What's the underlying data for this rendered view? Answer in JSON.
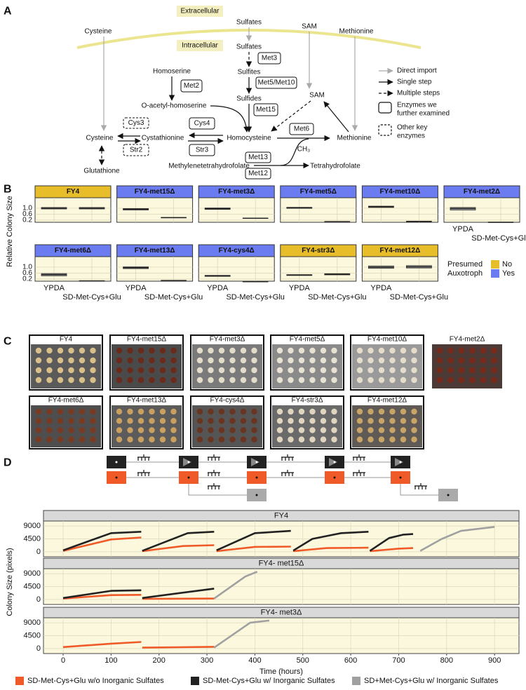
{
  "panel_labels": [
    "A",
    "B",
    "C",
    "D"
  ],
  "pathway": {
    "compartments": [
      "Extracellular",
      "Intracellular"
    ],
    "metabolites": [
      "Cysteine",
      "Sulfates",
      "SAM",
      "Methionine",
      "Sulfates",
      "Sulfites",
      "Homoserine",
      "Sulfides",
      "O-acetyl-homoserine",
      "SAM",
      "Cysteine",
      "Cystathionine",
      "Homocysteine",
      "Methionine",
      "Glutathione",
      "Methylenetetrahydrofolate",
      "Tetrahydrofolate"
    ],
    "cofactor": "CH₃",
    "enzymes": [
      {
        "label": "Met3",
        "border": "solid"
      },
      {
        "label": "Met5/Met10",
        "border": "solid"
      },
      {
        "label": "Met2",
        "border": "solid"
      },
      {
        "label": "Met15",
        "border": "solid"
      },
      {
        "label": "Cys3",
        "border": "dashed"
      },
      {
        "label": "Cys4",
        "border": "solid"
      },
      {
        "label": "Met6",
        "border": "solid"
      },
      {
        "label": "Str2",
        "border": "dashed"
      },
      {
        "label": "Str3",
        "border": "solid"
      },
      {
        "label": "Met13",
        "border": "solid"
      },
      {
        "label": "Met12",
        "border": "solid",
        "color": "#8a8a8a"
      }
    ],
    "legend": [
      [
        "Direct import"
      ],
      [
        "Single step"
      ],
      [
        "Multiple steps"
      ],
      [
        "Enzymes we",
        "further examined"
      ],
      [
        "Other key",
        "enzymes"
      ]
    ]
  },
  "chart_data": [
    {
      "type": "box",
      "ylabel": "Relative Colony Size",
      "categories": [
        "YPDA",
        "SD-Met-Cys+Glu"
      ],
      "ylim": [
        0.06,
        1.7
      ],
      "yticks": [
        0.2,
        0.6,
        {
          "value": 1,
          "label": "1.0"
        }
      ],
      "box_color": "#a9a9a9",
      "legend": {
        "title": [
          "Presumed",
          "Auxotroph"
        ],
        "entries": [
          {
            "label": "No",
            "color": "#e8bd2a"
          },
          {
            "label": "Yes",
            "color": "#6b7cf0"
          }
        ]
      },
      "facets": [
        {
          "title": "FY4",
          "header_color": "#e8bd2a",
          "q1": [
            0.95,
            0.95
          ],
          "median": [
            1.0,
            1.0
          ],
          "q3": [
            1.05,
            1.05
          ]
        },
        {
          "title": "FY4-met15Δ",
          "header_color": "#6b7cf0",
          "q1": [
            0.88,
            0.36
          ],
          "median": [
            0.93,
            0.37
          ],
          "q3": [
            0.98,
            0.38
          ]
        },
        {
          "title": "FY4-met3Δ",
          "header_color": "#6b7cf0",
          "q1": [
            0.92,
            0.32
          ],
          "median": [
            0.97,
            0.33
          ],
          "q3": [
            1.02,
            0.34
          ]
        },
        {
          "title": "FY4-met5Δ",
          "header_color": "#6b7cf0",
          "q1": [
            0.99,
            0.09
          ],
          "median": [
            1.03,
            0.1
          ],
          "q3": [
            1.06,
            0.11
          ]
        },
        {
          "title": "FY4-met10Δ",
          "header_color": "#6b7cf0",
          "q1": [
            1.05,
            0.11
          ],
          "median": [
            1.1,
            0.12
          ],
          "q3": [
            1.14,
            0.13
          ]
        },
        {
          "title": "FY4-met2Δ",
          "header_color": "#6b7cf0",
          "q1": [
            0.88,
            0.05
          ],
          "median": [
            0.98,
            0.06
          ],
          "q3": [
            1.05,
            0.07
          ]
        },
        {
          "title": "FY4-met6Δ",
          "header_color": "#6b7cf0",
          "q1": [
            0.42,
            0.07
          ],
          "median": [
            0.5,
            0.08
          ],
          "q3": [
            0.57,
            0.09
          ]
        },
        {
          "title": "FY4-met13Δ",
          "header_color": "#6b7cf0",
          "q1": [
            0.9,
            0.09
          ],
          "median": [
            0.96,
            0.1
          ],
          "q3": [
            1.02,
            0.11
          ]
        },
        {
          "title": "FY4-cys4Δ",
          "header_color": "#6b7cf0",
          "q1": [
            0.38,
            0.02
          ],
          "median": [
            0.42,
            0.03
          ],
          "q3": [
            0.45,
            0.04
          ]
        },
        {
          "title": "FY4-str3Δ",
          "header_color": "#e8bd2a",
          "q1": [
            0.44,
            0.48
          ],
          "median": [
            0.47,
            0.52
          ],
          "q3": [
            0.5,
            0.56
          ]
        },
        {
          "title": "FY4-met12Δ",
          "header_color": "#e8bd2a",
          "q1": [
            0.92,
            0.94
          ],
          "median": [
            1.0,
            1.02
          ],
          "q3": [
            1.08,
            1.1
          ]
        }
      ]
    },
    {
      "type": "line",
      "xlabel": "Time (hours)",
      "ylabel": "Colony Size (pixels)",
      "xlim": [
        -41,
        951
      ],
      "xticks": [
        0,
        100,
        200,
        300,
        400,
        500,
        600,
        700,
        800,
        900
      ],
      "ylim": [
        -1750,
        10750
      ],
      "yticks": [
        0,
        4500,
        9000
      ],
      "series": [
        {
          "name": "SD-Met-Cys+Glu w/o Inorganic Sulfates",
          "color": "#f05a28"
        },
        {
          "name": "SD-Met-Cys+Glu w/ Inorganic Sulfates",
          "color": "#222222"
        },
        {
          "name": "SD+Met-Cys+Glu w/ Inorganic Sulfates",
          "color": "#a0a0a0"
        }
      ],
      "facets": [
        {
          "title": "FY4",
          "lines": [
            {
              "x": [
                0,
                100,
                163,
                null,
                165,
                250,
                315,
                null,
                320,
                400,
                475,
                null,
                480,
                550,
                637,
                null,
                640,
                700,
                730
              ],
              "values": [
                300,
                4300,
                5000,
                null,
                200,
                2000,
                2300,
                null,
                200,
                1700,
                1800,
                null,
                200,
                1300,
                1400,
                null,
                200,
                1100,
                1300
              ]
            },
            {
              "x": [
                0,
                100,
                163,
                null,
                165,
                260,
                315,
                null,
                320,
                400,
                475,
                null,
                480,
                520,
                580,
                637,
                null,
                640,
                680,
                710,
                730
              ],
              "values": [
                500,
                6500,
                7000,
                null,
                300,
                6500,
                7000,
                null,
                500,
                6500,
                7300,
                null,
                400,
                4500,
                6500,
                7000,
                null,
                300,
                4800,
                6000,
                6200
              ]
            },
            {
              "x": [
                745,
                790,
                830,
                900
              ],
              "values": [
                300,
                4500,
                7300,
                8700
              ]
            }
          ]
        },
        {
          "title": "FY4- met15Δ",
          "lines": [
            {
              "x": [
                0,
                100,
                163,
                null,
                165,
                315
              ],
              "values": [
                300,
                1500,
                1600,
                null,
                200,
                300
              ]
            },
            {
              "x": [
                0,
                100,
                163,
                null,
                165,
                315
              ],
              "values": [
                500,
                3000,
                3200,
                null,
                500,
                3800
              ]
            },
            {
              "x": [
                315,
                380,
                405
              ],
              "values": [
                300,
                8000,
                9700
              ]
            }
          ]
        },
        {
          "title": "FY4- met3Δ",
          "lines": [
            {
              "x": [
                0,
                100,
                163,
                null,
                165,
                315
              ],
              "values": [
                500,
                1700,
                2300,
                null,
                300,
                600
              ]
            },
            {
              "x": [],
              "values": []
            },
            {
              "x": [
                315,
                390,
                430
              ],
              "values": [
                300,
                9000,
                9800
              ]
            }
          ]
        }
      ]
    }
  ],
  "plates": [
    "FY4",
    "FY4-met15Δ",
    "FY4-met3Δ",
    "FY4-met5Δ",
    "FY4-met10Δ",
    "FY4-met2Δ",
    "FY4-met6Δ",
    "FY4-met13Δ",
    "FY4-cys4Δ",
    "FY4-str3Δ",
    "FY4-met12Δ"
  ]
}
